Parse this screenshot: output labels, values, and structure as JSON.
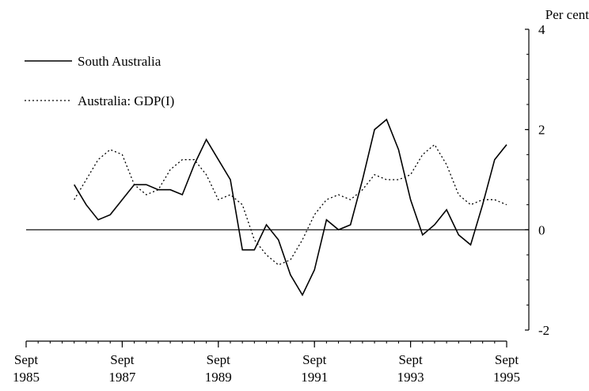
{
  "chart_data": {
    "type": "line",
    "title": "",
    "xlabel": "",
    "ylabel": "Per cent",
    "ylim": [
      -2,
      4
    ],
    "xlim": [
      1985.75,
      1995.75
    ],
    "y_ticks": [
      {
        "value": 4,
        "label": "4"
      },
      {
        "value": 2,
        "label": "2"
      },
      {
        "value": 0,
        "label": "0"
      },
      {
        "value": -2,
        "label": "-2"
      }
    ],
    "x_ticks": [
      {
        "value": 1985.75,
        "line1": "Sept",
        "line2": "1985"
      },
      {
        "value": 1987.75,
        "line1": "Sept",
        "line2": "1987"
      },
      {
        "value": 1989.75,
        "line1": "Sept",
        "line2": "1989"
      },
      {
        "value": 1991.75,
        "line1": "Sept",
        "line2": "1991"
      },
      {
        "value": 1993.75,
        "line1": "Sept",
        "line2": "1993"
      },
      {
        "value": 1995.75,
        "line1": "Sept",
        "line2": "1995"
      }
    ],
    "zero_line": true,
    "legend": "top-left",
    "series": [
      {
        "name": "South Australia",
        "style": "solid",
        "color": "#000000",
        "x": [
          1986.75,
          1987.0,
          1987.25,
          1987.5,
          1987.75,
          1988.0,
          1988.25,
          1988.5,
          1988.75,
          1989.0,
          1989.25,
          1989.5,
          1989.75,
          1990.0,
          1990.25,
          1990.5,
          1990.75,
          1991.0,
          1991.25,
          1991.5,
          1991.75,
          1992.0,
          1992.25,
          1992.5,
          1992.75,
          1993.0,
          1993.25,
          1993.5,
          1993.75,
          1994.0,
          1994.25,
          1994.5,
          1994.75,
          1995.0,
          1995.25,
          1995.5,
          1995.75
        ],
        "values": [
          0.9,
          0.5,
          0.2,
          0.3,
          0.6,
          0.9,
          0.9,
          0.8,
          0.8,
          0.7,
          1.3,
          1.8,
          1.4,
          1.0,
          -0.4,
          -0.4,
          0.1,
          -0.2,
          -0.9,
          -1.3,
          -0.8,
          0.2,
          0.0,
          0.1,
          1.0,
          2.0,
          2.2,
          1.6,
          0.6,
          -0.1,
          0.1,
          0.4,
          -0.1,
          -0.3,
          0.5,
          1.4,
          1.7
        ]
      },
      {
        "name": "Australia: GDP(I)",
        "style": "dotted",
        "color": "#000000",
        "x": [
          1986.75,
          1987.0,
          1987.25,
          1987.5,
          1987.75,
          1988.0,
          1988.25,
          1988.5,
          1988.75,
          1989.0,
          1989.25,
          1989.5,
          1989.75,
          1990.0,
          1990.25,
          1990.5,
          1990.75,
          1991.0,
          1991.25,
          1991.5,
          1991.75,
          1992.0,
          1992.25,
          1992.5,
          1992.75,
          1993.0,
          1993.25,
          1993.5,
          1993.75,
          1994.0,
          1994.25,
          1994.5,
          1994.75,
          1995.0,
          1995.25,
          1995.5,
          1995.75
        ],
        "values": [
          0.6,
          1.0,
          1.4,
          1.6,
          1.5,
          0.9,
          0.7,
          0.8,
          1.2,
          1.4,
          1.4,
          1.1,
          0.6,
          0.7,
          0.5,
          -0.2,
          -0.5,
          -0.7,
          -0.6,
          -0.2,
          0.3,
          0.6,
          0.7,
          0.6,
          0.8,
          1.1,
          1.0,
          1.0,
          1.1,
          1.5,
          1.7,
          1.3,
          0.7,
          0.5,
          0.6,
          0.6,
          0.5
        ]
      }
    ]
  }
}
